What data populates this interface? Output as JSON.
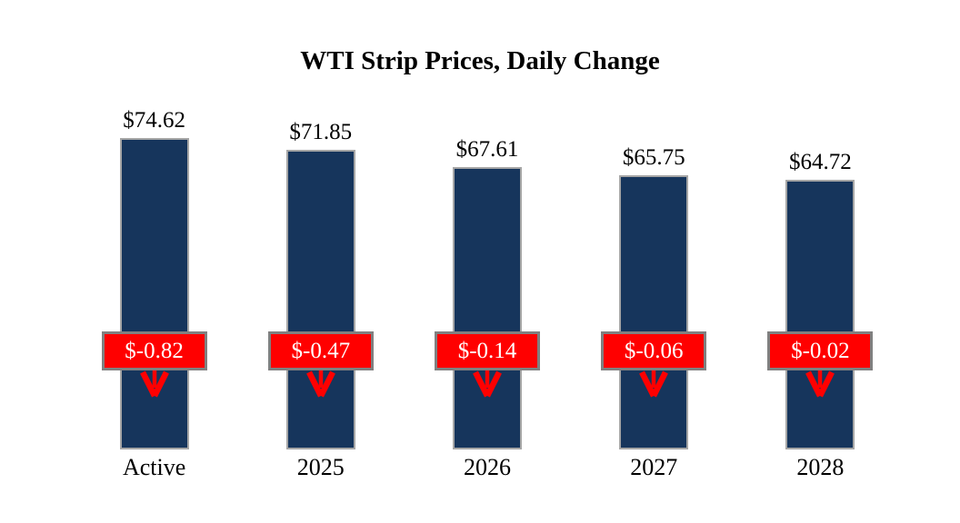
{
  "chart_data": {
    "type": "bar",
    "title": "WTI Strip Prices, Daily Change",
    "xlabel": "",
    "ylabel": "",
    "categories": [
      "Active",
      "2025",
      "2026",
      "2027",
      "2028"
    ],
    "values": [
      74.62,
      71.85,
      67.61,
      65.75,
      64.72
    ],
    "value_labels": [
      "$74.62",
      "$71.85",
      "$67.61",
      "$65.75",
      "$64.72"
    ],
    "daily_changes": [
      -0.82,
      -0.47,
      -0.14,
      -0.06,
      -0.02
    ],
    "change_labels": [
      "$-0.82",
      "$-0.47",
      "$-0.14",
      "$-0.06",
      "$-0.02"
    ],
    "ylim": [
      0,
      74.62
    ],
    "grid": false,
    "legend": null,
    "colors": {
      "bar_fill": "#16355C",
      "bar_border": "#A6A6A6",
      "change_box_fill": "#FF0000",
      "change_box_border": "#808080",
      "change_text": "#FFFFFF",
      "arrow": "#FF0000",
      "label_text": "#000000",
      "background": "#FFFFFF"
    }
  }
}
